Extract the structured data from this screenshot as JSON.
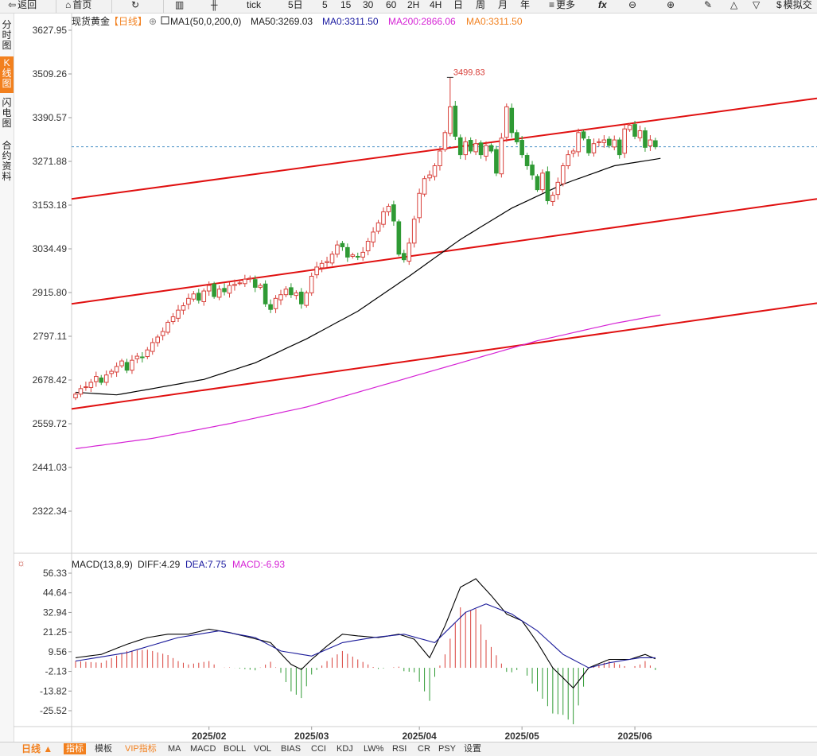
{
  "toolbar": {
    "back_label": "返回",
    "home_label": "首页",
    "tick_label": "tick",
    "periods": [
      "5日",
      "5",
      "15",
      "30",
      "60",
      "2H",
      "4H",
      "日",
      "周",
      "月",
      "年"
    ],
    "more_label": "更多",
    "fx_label": "fx",
    "sim_label": "模拟交"
  },
  "side_tabs": [
    "分时图",
    "K线图",
    "闪电图",
    "合约资料"
  ],
  "active_tab": 1,
  "header": {
    "instrument": "现货黄金",
    "period_tag": "【日线】",
    "ma_indicator": "MA1(50,0,200,0)",
    "ma50": "MA50:3269.03",
    "ma0a": "MA0:3311.50",
    "ma200": "MA200:2866.06",
    "ma0b": "MA0:3311.50"
  },
  "macd_header": {
    "title": "MACD(13,8,9)",
    "diff": "DIFF:4.29",
    "dea": "DEA:7.75",
    "macd": "MACD:-6.93"
  },
  "bottom_tabs": [
    "日线 ▲",
    "指标",
    "模板",
    "VIP指标",
    "MA",
    "MACD",
    "BOLL",
    "VOL",
    "BIAS",
    "CCI",
    "KDJ",
    "LW%",
    "RSI",
    "CR",
    "PSY",
    "设置"
  ],
  "colors": {
    "up": "#d8403a",
    "down": "#2f9a34",
    "ma50": "#000000",
    "ma200": "#d522d5",
    "channel": "#e01010",
    "diff": "#000000",
    "dea": "#1a1a9a",
    "accent": "#f2801e"
  },
  "chart_data": {
    "type": "candlestick",
    "price_axis": {
      "ticks": [
        3627.95,
        3509.26,
        3390.57,
        3271.88,
        3153.18,
        3034.49,
        2915.8,
        2797.11,
        2678.42,
        2559.72,
        2441.03,
        2322.34
      ],
      "ylim": [
        2295,
        3660
      ]
    },
    "x_axis_labels": [
      {
        "label": "2025/02",
        "index": 26
      },
      {
        "label": "2025/03",
        "index": 46
      },
      {
        "label": "2025/04",
        "index": 67
      },
      {
        "label": "2025/05",
        "index": 87
      },
      {
        "label": "2025/06",
        "index": 109
      }
    ],
    "high_annotation": {
      "label": "3499.83",
      "value": 3499.83,
      "index": 73
    },
    "last_price": 3311.5,
    "closes": [
      2640,
      2655,
      2660,
      2672,
      2688,
      2672,
      2692,
      2702,
      2715,
      2730,
      2705,
      2732,
      2743,
      2740,
      2760,
      2780,
      2795,
      2810,
      2835,
      2850,
      2868,
      2880,
      2900,
      2912,
      2895,
      2920,
      2935,
      2905,
      2925,
      2918,
      2935,
      2938,
      2942,
      2952,
      2955,
      2930,
      2935,
      2885,
      2870,
      2900,
      2910,
      2925,
      2910,
      2915,
      2885,
      2915,
      2960,
      2985,
      2995,
      3000,
      3020,
      3045,
      3040,
      3012,
      3018,
      3012,
      3025,
      3055,
      3080,
      3105,
      3135,
      3150,
      3110,
      3020,
      3005,
      3050,
      3115,
      3185,
      3225,
      3235,
      3260,
      3300,
      3350,
      3420,
      3340,
      3290,
      3325,
      3300,
      3320,
      3290,
      3315,
      3300,
      3240,
      3335,
      3420,
      3350,
      3325,
      3290,
      3260,
      3235,
      3195,
      3240,
      3165,
      3180,
      3215,
      3260,
      3290,
      3300,
      3350,
      3335,
      3295,
      3320,
      3325,
      3330,
      3315,
      3330,
      3290,
      3360,
      3370,
      3340,
      3355,
      3310,
      3330,
      3311.5
    ],
    "series": [
      {
        "name": "MA50",
        "values_at": [
          [
            0,
            2645
          ],
          [
            8,
            2638
          ],
          [
            15,
            2655
          ],
          [
            25,
            2680
          ],
          [
            35,
            2725
          ],
          [
            45,
            2790
          ],
          [
            55,
            2865
          ],
          [
            65,
            2960
          ],
          [
            75,
            3060
          ],
          [
            85,
            3145
          ],
          [
            95,
            3210
          ],
          [
            105,
            3260
          ],
          [
            114,
            3280
          ]
        ]
      },
      {
        "name": "MA200",
        "values_at": [
          [
            0,
            2492
          ],
          [
            15,
            2520
          ],
          [
            30,
            2560
          ],
          [
            45,
            2605
          ],
          [
            60,
            2665
          ],
          [
            75,
            2725
          ],
          [
            90,
            2785
          ],
          [
            105,
            2832
          ],
          [
            114,
            2855
          ]
        ]
      }
    ],
    "channels": [
      {
        "from_value": 3170,
        "to_value": 3443
      },
      {
        "from_value": 2885,
        "to_value": 3170
      },
      {
        "from_value": 2600,
        "to_value": 2887
      }
    ],
    "macd": {
      "ticks": [
        56.33,
        44.64,
        32.94,
        21.25,
        9.56,
        -2.13,
        -13.82,
        -25.52
      ],
      "ylim": [
        -30,
        60
      ],
      "diff_at": [
        [
          0,
          6
        ],
        [
          5,
          8
        ],
        [
          10,
          14
        ],
        [
          14,
          18
        ],
        [
          18,
          20
        ],
        [
          22,
          20
        ],
        [
          26,
          23
        ],
        [
          30,
          21
        ],
        [
          34,
          18
        ],
        [
          38,
          15
        ],
        [
          42,
          2
        ],
        [
          44,
          -1
        ],
        [
          46,
          5
        ],
        [
          49,
          13
        ],
        [
          52,
          20
        ],
        [
          55,
          19
        ],
        [
          59,
          18
        ],
        [
          63,
          20
        ],
        [
          66,
          17
        ],
        [
          69,
          6
        ],
        [
          72,
          25
        ],
        [
          75,
          48
        ],
        [
          78,
          53
        ],
        [
          81,
          43
        ],
        [
          84,
          32
        ],
        [
          87,
          28
        ],
        [
          90,
          15
        ],
        [
          93,
          0
        ],
        [
          97,
          -12
        ],
        [
          100,
          0
        ],
        [
          104,
          5
        ],
        [
          108,
          5
        ],
        [
          111,
          8
        ],
        [
          114,
          4
        ]
      ],
      "dea_at": [
        [
          0,
          4
        ],
        [
          10,
          9
        ],
        [
          20,
          18
        ],
        [
          28,
          22
        ],
        [
          35,
          18
        ],
        [
          40,
          10
        ],
        [
          46,
          7
        ],
        [
          52,
          15
        ],
        [
          58,
          18
        ],
        [
          64,
          20
        ],
        [
          70,
          15
        ],
        [
          76,
          33
        ],
        [
          80,
          38
        ],
        [
          85,
          32
        ],
        [
          90,
          22
        ],
        [
          95,
          8
        ],
        [
          100,
          0
        ],
        [
          104,
          3
        ],
        [
          110,
          6
        ],
        [
          114,
          6
        ]
      ],
      "hist_mode": "2 * (DIFF - DEA)"
    }
  }
}
